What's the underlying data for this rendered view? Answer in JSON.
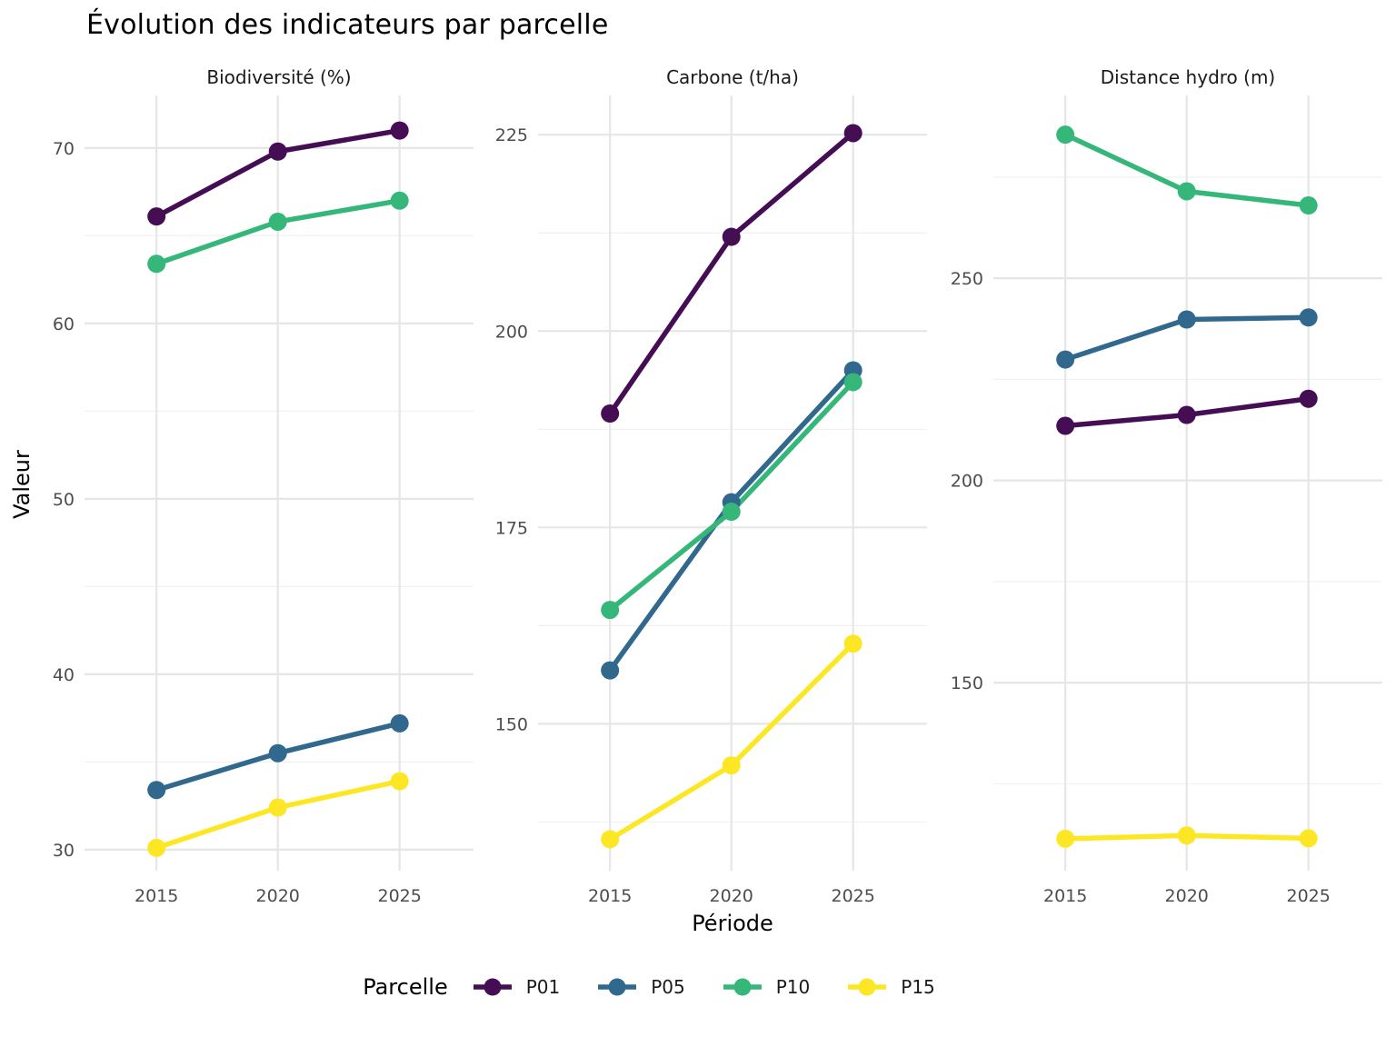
{
  "chart_data": {
    "type": "line",
    "title": "Évolution des indicateurs par parcelle",
    "xlabel": "Période",
    "ylabel": "Valeur",
    "legend_title": "Parcelle",
    "legend_position": "bottom",
    "grid": true,
    "x": [
      2015,
      2020,
      2025
    ],
    "series_names": [
      "P01",
      "P05",
      "P10",
      "P15"
    ],
    "series_colors": {
      "P01": "#440D54",
      "P05": "#31688E",
      "P10": "#35B779",
      "P15": "#FDE725"
    },
    "facets": [
      {
        "title": "Biodiversité (%)",
        "ylim": [
          28.8,
          73.0
        ],
        "yticks": [
          30,
          40,
          50,
          60,
          70
        ],
        "yticks_minor": [
          35,
          45,
          55,
          65
        ],
        "series": [
          {
            "name": "P01",
            "values": [
              66.1,
              69.8,
              71.0
            ]
          },
          {
            "name": "P05",
            "values": [
              33.4,
              35.5,
              37.2
            ]
          },
          {
            "name": "P10",
            "values": [
              63.4,
              65.8,
              67.0
            ]
          },
          {
            "name": "P15",
            "values": [
              30.1,
              32.4,
              33.9
            ]
          }
        ]
      },
      {
        "title": "Carbone (t/ha)",
        "ylim": [
          131.3,
          230.0
        ],
        "yticks": [
          150,
          175,
          200,
          225
        ],
        "yticks_minor": [
          137.5,
          162.5,
          187.5,
          212.5
        ],
        "series": [
          {
            "name": "P01",
            "values": [
              189.5,
              212.0,
              225.2
            ]
          },
          {
            "name": "P05",
            "values": [
              156.8,
              178.2,
              195.0
            ]
          },
          {
            "name": "P10",
            "values": [
              164.5,
              177.0,
              193.5
            ]
          },
          {
            "name": "P15",
            "values": [
              135.3,
              144.7,
              160.2
            ]
          }
        ]
      },
      {
        "title": "Distance hydro (m)",
        "ylim": [
          103.5,
          295.2
        ],
        "yticks": [
          150,
          200,
          250
        ],
        "yticks_minor": [
          125,
          175,
          225,
          275
        ],
        "series": [
          {
            "name": "P01",
            "values": [
              213.5,
              216.2,
              220.2
            ]
          },
          {
            "name": "P05",
            "values": [
              229.9,
              239.8,
              240.3
            ]
          },
          {
            "name": "P10",
            "values": [
              285.5,
              271.5,
              268.0
            ]
          },
          {
            "name": "P15",
            "values": [
              111.4,
              112.2,
              111.5
            ]
          }
        ]
      }
    ]
  },
  "style": {
    "grid_major_color": "#e6e6e6",
    "grid_minor_color": "#f1f1f1",
    "tick_label_color": "#4d4d4d",
    "strip_label_color": "#1a1a1a",
    "background": "#ffffff"
  }
}
